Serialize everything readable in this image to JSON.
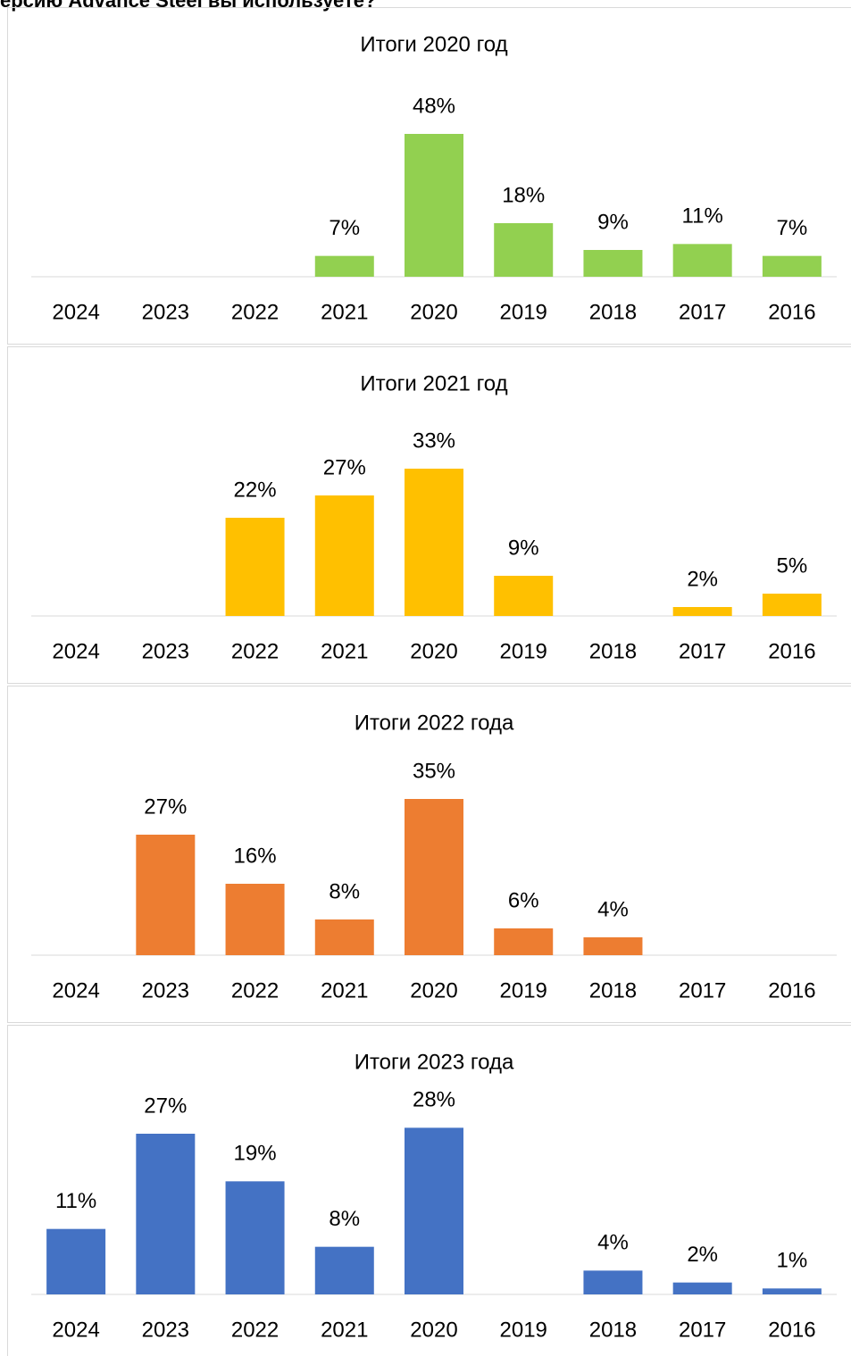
{
  "heading": "ерсию Advance Steel вы используете?",
  "chart_data": [
    {
      "type": "bar",
      "title": "Итоги 2020 год",
      "categories": [
        "2024",
        "2023",
        "2022",
        "2021",
        "2020",
        "2019",
        "2018",
        "2017",
        "2016"
      ],
      "values": [
        null,
        null,
        null,
        7,
        48,
        18,
        9,
        11,
        7
      ],
      "value_labels": [
        null,
        null,
        null,
        "7%",
        "48%",
        "18%",
        "9%",
        "11%",
        "7%"
      ],
      "color": "#92d050",
      "ylim": [
        0,
        60
      ]
    },
    {
      "type": "bar",
      "title": "Итоги 2021 год",
      "categories": [
        "2024",
        "2023",
        "2022",
        "2021",
        "2020",
        "2019",
        "2018",
        "2017",
        "2016"
      ],
      "values": [
        null,
        null,
        22,
        27,
        33,
        9,
        null,
        2,
        5
      ],
      "value_labels": [
        null,
        null,
        "22%",
        "27%",
        "33%",
        "9%",
        null,
        "2%",
        "5%"
      ],
      "color": "#ffc000",
      "ylim": [
        0,
        40
      ]
    },
    {
      "type": "bar",
      "title": "Итоги 2022 года",
      "categories": [
        "2024",
        "2023",
        "2022",
        "2021",
        "2020",
        "2019",
        "2018",
        "2017",
        "2016"
      ],
      "values": [
        null,
        27,
        16,
        8,
        35,
        6,
        4,
        null,
        null
      ],
      "value_labels": [
        null,
        "27%",
        "16%",
        "8%",
        "35%",
        "6%",
        "4%",
        null,
        null
      ],
      "color": "#ed7d31",
      "ylim": [
        0,
        40
      ]
    },
    {
      "type": "bar",
      "title": "Итоги 2023 года",
      "categories": [
        "2024",
        "2023",
        "2022",
        "2021",
        "2020",
        "2019",
        "2018",
        "2017",
        "2016"
      ],
      "values": [
        11,
        27,
        19,
        8,
        28,
        null,
        4,
        2,
        1
      ],
      "value_labels": [
        "11%",
        "27%",
        "19%",
        "8%",
        "28%",
        null,
        "4%",
        "2%",
        "1%"
      ],
      "color": "#4472c4",
      "ylim": [
        0,
        30
      ]
    }
  ]
}
